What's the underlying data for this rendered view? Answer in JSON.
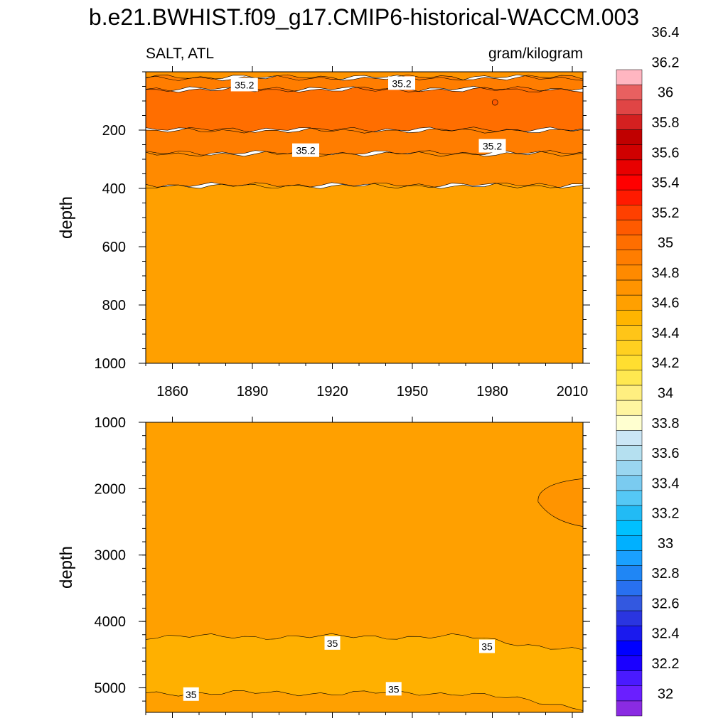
{
  "page_title": "b.e21.BWHIST.f09_g17.CMIP6-historical-WACCM.003",
  "left_label": "SALT, ATL",
  "right_label": "gram/kilogram",
  "chart_data": [
    {
      "type": "contour",
      "panel": "upper",
      "variable": "SALT",
      "region": "ATL",
      "units": "gram/kilogram",
      "xlabel": "",
      "ylabel": "depth",
      "xlim": [
        1850,
        2014
      ],
      "ylim": [
        1000,
        0
      ],
      "xticks": [
        1860,
        1890,
        1920,
        1950,
        1980,
        2010
      ],
      "yticks": [
        200,
        400,
        600,
        800,
        1000
      ],
      "bands": [
        {
          "from": 0,
          "to": 20,
          "level": 35.0,
          "color": "#ff9400"
        },
        {
          "from": 20,
          "to": 60,
          "level": 35.3,
          "color": "#ff7d00"
        },
        {
          "from": 60,
          "to": 200,
          "level": 35.4,
          "color": "#ff6e00"
        },
        {
          "from": 200,
          "to": 280,
          "level": 35.3,
          "color": "#ff7d00"
        },
        {
          "from": 280,
          "to": 390,
          "level": 35.2,
          "color": "#ff8a00"
        },
        {
          "from": 390,
          "to": 1000,
          "level": 35.1,
          "color": "#ffa000"
        }
      ],
      "contour_labels": [
        {
          "text": "35.2",
          "x": 1887,
          "depth": 45
        },
        {
          "text": "35.2",
          "x": 1946,
          "depth": 40
        },
        {
          "text": "35.2",
          "x": 1910,
          "depth": 270
        },
        {
          "text": "35.2",
          "x": 1980,
          "depth": 255
        }
      ]
    },
    {
      "type": "contour",
      "panel": "lower",
      "variable": "SALT",
      "region": "ATL",
      "units": "gram/kilogram",
      "xlabel": "",
      "ylabel": "depth",
      "xlim": [
        1850,
        2014
      ],
      "ylim": [
        5370,
        1000
      ],
      "xticks": [
        1860,
        1890,
        1920,
        1950,
        1980,
        2010
      ],
      "yticks": [
        1000,
        2000,
        3000,
        4000,
        5000
      ],
      "background_level": 35.1,
      "background_color": "#ffa000",
      "bands": [
        {
          "from": 4230,
          "to": 5080,
          "level": 35.0,
          "color": "#ffb000"
        }
      ],
      "patch_level": 35.2,
      "patch_color": "#ff9400",
      "contour_labels": [
        {
          "text": "35",
          "x": 1920,
          "depth": 4330
        },
        {
          "text": "35",
          "x": 1978,
          "depth": 4380
        },
        {
          "text": "35",
          "x": 1867,
          "depth": 5100
        },
        {
          "text": "35",
          "x": 1943,
          "depth": 5020
        }
      ]
    }
  ],
  "colorbar": {
    "colors": [
      "#8a2be2",
      "#6a1fff",
      "#4a1aff",
      "#1a00ff",
      "#0000ff",
      "#1a1aee",
      "#2a35e0",
      "#3358e0",
      "#2870f0",
      "#1f86f5",
      "#1aa0ff",
      "#00b0ff",
      "#00c0ff",
      "#22bbf5",
      "#55c8f5",
      "#7acbf0",
      "#9ad6f0",
      "#b5e0f0",
      "#cbe6f5",
      "#ffffd0",
      "#fff5a0",
      "#ffef80",
      "#ffe850",
      "#ffde30",
      "#ffd020",
      "#ffc518",
      "#ffb500",
      "#ffa000",
      "#ff9400",
      "#ff8a00",
      "#ff7d00",
      "#ff6e00",
      "#ff5a00",
      "#ff4000",
      "#ff1a00",
      "#ff0000",
      "#e80000",
      "#d00000",
      "#c00000",
      "#d42020",
      "#e04545",
      "#e86060",
      "#ffb6c1"
    ],
    "labels": [
      "32",
      "32.2",
      "32.4",
      "32.6",
      "32.8",
      "33",
      "33.2",
      "33.4",
      "33.6",
      "33.8",
      "34",
      "34.2",
      "34.4",
      "34.6",
      "34.8",
      "35",
      "35.2",
      "35.4",
      "35.6",
      "35.8",
      "36",
      "36.2",
      "36.4"
    ]
  }
}
